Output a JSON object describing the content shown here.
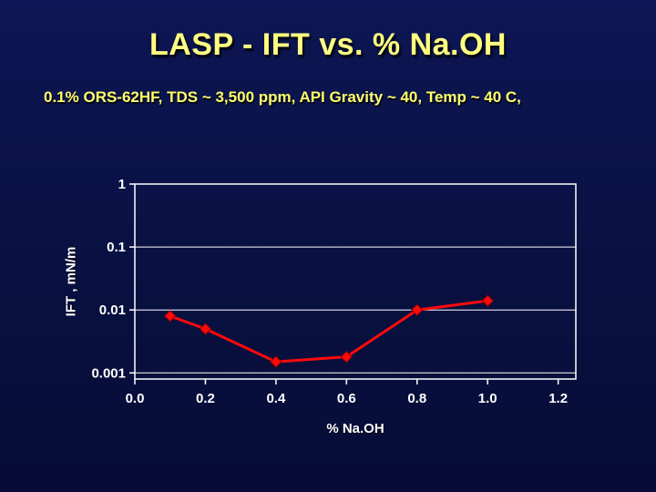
{
  "slide": {
    "title": "LASP - IFT vs. % Na.OH",
    "subtitle": "0.1% ORS-62HF, TDS ~ 3,500 ppm, API Gravity ~ 40, Temp ~ 40 C,",
    "background_color": "#091142",
    "title_color": "#ffff80",
    "subtitle_color": "#ffff6b"
  },
  "chart_data": {
    "type": "line",
    "title": "",
    "xlabel": "% Na.OH",
    "ylabel": "IFT , mN/m",
    "x_scale": "linear",
    "y_scale": "log",
    "xlim": [
      0,
      1.25
    ],
    "ylim": [
      0.0008,
      1
    ],
    "grid": true,
    "axis_color": "#ffffff",
    "series": [
      {
        "name": "IFT",
        "color": "#ff0a0a",
        "marker": "diamond",
        "x": [
          0.1,
          0.2,
          0.4,
          0.6,
          0.8,
          1.0
        ],
        "y": [
          0.008,
          0.005,
          0.0015,
          0.0018,
          0.01,
          0.014
        ]
      }
    ],
    "x_ticks": [
      {
        "value": 0.0,
        "label": "0.0"
      },
      {
        "value": 0.2,
        "label": "0.2"
      },
      {
        "value": 0.4,
        "label": "0.4"
      },
      {
        "value": 0.6,
        "label": "0.6"
      },
      {
        "value": 0.8,
        "label": "0.8"
      },
      {
        "value": 1.0,
        "label": "1.0"
      },
      {
        "value": 1.2,
        "label": "1.2"
      }
    ],
    "y_ticks": [
      {
        "value": 1,
        "label": "1"
      },
      {
        "value": 0.1,
        "label": "0.1"
      },
      {
        "value": 0.01,
        "label": "0.01"
      },
      {
        "value": 0.001,
        "label": "0.001"
      }
    ]
  }
}
